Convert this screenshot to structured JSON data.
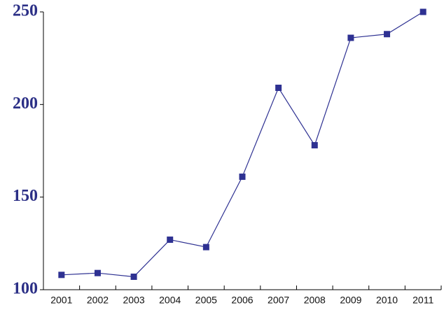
{
  "chart_data": {
    "type": "line",
    "categories": [
      "2001",
      "2002",
      "2003",
      "2004",
      "2005",
      "2006",
      "2007",
      "2008",
      "2009",
      "2010",
      "2011"
    ],
    "series": [
      {
        "color": "#2e3192",
        "values": [
          108,
          109,
          107,
          127,
          123,
          161,
          209,
          178,
          236,
          238,
          250
        ]
      }
    ],
    "ylim": [
      100,
      250
    ],
    "yticks": [
      100,
      150,
      200,
      250
    ]
  }
}
